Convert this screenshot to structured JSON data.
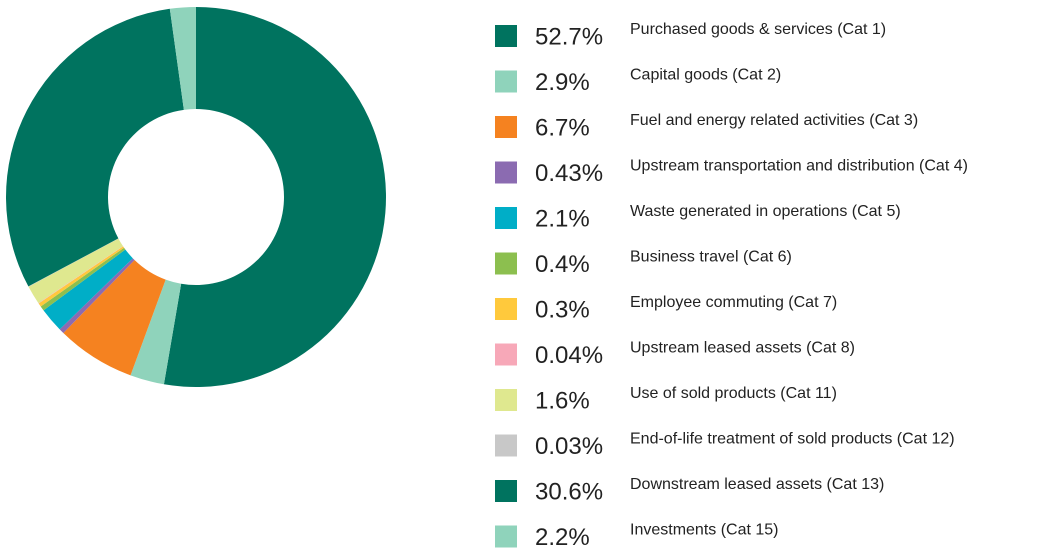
{
  "chart_data": {
    "type": "pie",
    "categories": [
      "Purchased goods & services (Cat 1)",
      "Capital goods (Cat 2)",
      "Fuel and energy related activities (Cat 3)",
      "Upstream transportation and distribution (Cat 4)",
      "Waste generated in operations (Cat 5)",
      "Business travel (Cat 6)",
      "Employee commuting (Cat 7)",
      "Upstream leased assets (Cat 8)",
      "Use of sold products (Cat 11)",
      "End-of-life treatment of sold products (Cat 12)",
      "Downstream leased assets (Cat 13)",
      "Investments (Cat 15)"
    ],
    "values": [
      52.7,
      2.9,
      6.7,
      0.43,
      2.1,
      0.4,
      0.3,
      0.04,
      1.6,
      0.03,
      30.6,
      2.2
    ],
    "value_labels": [
      "52.7%",
      "2.9%",
      "6.7%",
      "0.43%",
      "2.1%",
      "0.4%",
      "0.3%",
      "0.04%",
      "1.6%",
      "0.03%",
      "30.6%",
      "2.2%"
    ],
    "colors": [
      "#00735f",
      "#8fd3bb",
      "#f58220",
      "#8b6bb1",
      "#00aec7",
      "#8cbf4f",
      "#ffc93c",
      "#f7a8b8",
      "#dfe88f",
      "#c8c8c8",
      "#00735f",
      "#8fd3bb"
    ]
  }
}
